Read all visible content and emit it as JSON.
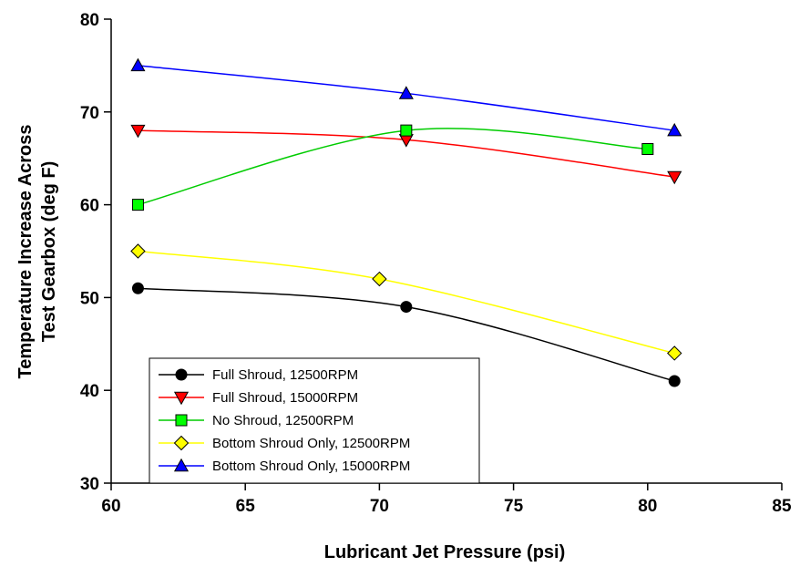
{
  "chart_data": {
    "type": "line",
    "xlabel": "Lubricant Jet Pressure (psi)",
    "ylabel_lines": [
      "Temperature Increase Across",
      "Test Gearbox (deg F)"
    ],
    "xlim": [
      60,
      85
    ],
    "ylim": [
      30,
      80
    ],
    "xticks": [
      60,
      65,
      70,
      75,
      80,
      85
    ],
    "yticks": [
      30,
      40,
      50,
      60,
      70,
      80
    ],
    "grid": false,
    "legend_position": "bottom-left",
    "series": [
      {
        "name": "Full Shroud, 12500RPM",
        "marker": "circle",
        "line_color": "#000000",
        "marker_fill": "#000000",
        "x": [
          61,
          71,
          81
        ],
        "y": [
          51,
          49,
          41
        ]
      },
      {
        "name": "Full Shroud, 15000RPM",
        "marker": "triangle-down",
        "line_color": "#ff0000",
        "marker_fill": "#ff0000",
        "x": [
          61,
          71,
          81
        ],
        "y": [
          68,
          67,
          63
        ]
      },
      {
        "name": "No Shroud, 12500RPM",
        "marker": "square",
        "line_color": "#00cc00",
        "marker_fill": "#00ff00",
        "x": [
          61,
          71,
          80
        ],
        "y": [
          60,
          68,
          66
        ]
      },
      {
        "name": "Bottom Shroud Only, 12500RPM",
        "marker": "diamond",
        "line_color": "#ffff00",
        "marker_fill": "#ffff00",
        "x": [
          61,
          70,
          81
        ],
        "y": [
          55,
          52,
          44
        ]
      },
      {
        "name": "Bottom Shroud Only, 15000RPM",
        "marker": "triangle-up",
        "line_color": "#0000ff",
        "marker_fill": "#0000ff",
        "x": [
          61,
          71,
          81
        ],
        "y": [
          75,
          72,
          68
        ]
      }
    ]
  }
}
